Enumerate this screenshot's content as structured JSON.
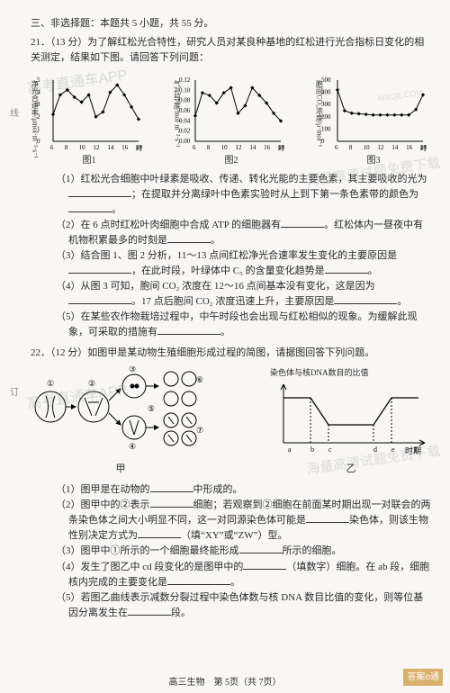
{
  "sideLabels": {
    "a": "线",
    "b": "订"
  },
  "sectionHead": "三、非选择题：本题共 5 小题，共 55 分。",
  "q21": {
    "num": "21．",
    "score": "（13 分）",
    "stem": "为了解红松光合特性，研究人员对某良种基地的红松进行光合指标日变化的相关测定，结果如下图。请回答下列问题：",
    "charts": {
      "fig1": {
        "label": "图1",
        "ylab": "净光合速率/μmol·m⁻²·s⁻¹",
        "xlab": "时",
        "xticks": [
          "6",
          "8",
          "10",
          "12",
          "14",
          "16",
          "18"
        ],
        "ylim": [
          0,
          5
        ],
        "ytick_step": 1,
        "points": [
          [
            6,
            2.2
          ],
          [
            7,
            3.8
          ],
          [
            8,
            4.2
          ],
          [
            9,
            3.6
          ],
          [
            10,
            3.2
          ],
          [
            11,
            3.8
          ],
          [
            12,
            2.0
          ],
          [
            13,
            2.4
          ],
          [
            14,
            4.0
          ],
          [
            15,
            4.6
          ],
          [
            16,
            3.8
          ],
          [
            17,
            2.8
          ],
          [
            18,
            1.8
          ]
        ],
        "line_color": "#111111",
        "marker": "diamond",
        "background_color": "#f8f7f5"
      },
      "fig2": {
        "label": "图2",
        "ylab": "气孔导度/mol·m⁻²·s⁻¹",
        "xlab": "时",
        "xticks": [
          "6",
          "8",
          "10",
          "12",
          "14",
          "16",
          "18"
        ],
        "ylim": [
          0,
          0.12
        ],
        "ytick_step": 0.02,
        "points": [
          [
            6,
            0.05
          ],
          [
            7,
            0.095
          ],
          [
            8,
            0.09
          ],
          [
            9,
            0.075
          ],
          [
            10,
            0.095
          ],
          [
            11,
            0.105
          ],
          [
            12,
            0.055
          ],
          [
            13,
            0.07
          ],
          [
            14,
            0.105
          ],
          [
            15,
            0.09
          ],
          [
            16,
            0.075
          ],
          [
            17,
            0.055
          ],
          [
            18,
            0.04
          ]
        ],
        "line_color": "#111111",
        "marker": "diamond",
        "background_color": "#f8f7f5"
      },
      "fig3": {
        "label": "图3",
        "ylab": "胞间CO₂浓度/μ·mol⁻¹",
        "xlab": "时",
        "xticks": [
          "6",
          "8",
          "10",
          "12",
          "14",
          "16",
          "18"
        ],
        "ylim": [
          0,
          500
        ],
        "ytick_step": 100,
        "points": [
          [
            6,
            420
          ],
          [
            7,
            250
          ],
          [
            8,
            230
          ],
          [
            9,
            225
          ],
          [
            10,
            220
          ],
          [
            11,
            215
          ],
          [
            12,
            215
          ],
          [
            13,
            215
          ],
          [
            14,
            215
          ],
          [
            15,
            215
          ],
          [
            16,
            215
          ],
          [
            17,
            260
          ],
          [
            18,
            380
          ]
        ],
        "line_color": "#111111",
        "marker": "diamond",
        "background_color": "#f8f7f5"
      }
    },
    "p1a": "（1）红松光合细胞中叶绿素是吸收、传递、转化光能的主要色素，其主要吸收的光为",
    "p1b": "；在提取并分离绿叶中色素实验时从上到下第一条色素带的颜色为",
    "p2a": "（2）在 6 点时红松叶肉细胞中合成 ATP 的细胞器有",
    "p2b": "。红松体内一昼夜中有机物积累最多的时刻是",
    "p3a": "（3）结合图 1、图 2 分析，11～13 点间红松净光合速率发生变化的主要原因是",
    "p3b": "，在此时段，叶绿体中 C₅ 的含量变化趋势是",
    "p4a": "（4）从图 3 可知，胞间 CO₂ 浓度在 12～16 点间基本没有变化，这是因为",
    "p4b": "。17 点后胞间 CO₂ 浓度迅速上升，主要原因是",
    "p5a": "（5）在某些农作物栽培过程中，中午时段也会出现与红松相似的现象。为缓解此现象，可采取的措施有",
    "end": "。"
  },
  "q22": {
    "num": "22．",
    "score": "（12 分）",
    "stem": "如图甲是某动物生殖细胞形成过程的简图，请据图回答下列问题。",
    "yi": {
      "title": "染色体与核DNA数目的比值",
      "xaxis": "时期",
      "segments": [
        "a",
        "b",
        "c",
        "d",
        "e",
        "f"
      ],
      "y_levels": [
        1,
        0.5
      ],
      "point_labels": [
        "a",
        "b",
        "c",
        "d",
        "e",
        "f"
      ],
      "yi_label": "乙"
    },
    "jia": {
      "label": "甲",
      "cells": [
        "①",
        "②",
        "③",
        "④",
        "⑤",
        "⑥",
        "⑦"
      ]
    },
    "p1": "（1）图甲是在动物的",
    "p1b": "中形成的。",
    "p2a": "（2）图甲中的②表示",
    "p2b": "细胞；若观察到②细胞在前面某时期出现一对联会的两条染色体之间大小明显不同，这一对同源染色体可能是",
    "p2c": "染色体，则该生物性别决定方式为",
    "p2d": "（填“XY”或“ZW”）型。",
    "p3a": "（3）图甲中①所示的一个细胞最终能形成",
    "p3b": "所示的细胞。",
    "p4a": "（4）发生了图乙中 cd 段变化的是图甲中的",
    "p4b": "（填数字）细胞。在 ab 段，细胞核内完成的主要变化是",
    "p5a": "（5）若图乙曲线表示减数分裂过程中染色体数与核 DNA 数目比值的变化，则等位基因分离发生在",
    "p5b": "段。"
  },
  "footer": "高三生物　第 5页（共 7页）",
  "watermarks": {
    "w1": "高考直通车APP",
    "w2": "海量高清试题免费下载",
    "w3": "MXQE.COM",
    "badge": "答案o通"
  }
}
